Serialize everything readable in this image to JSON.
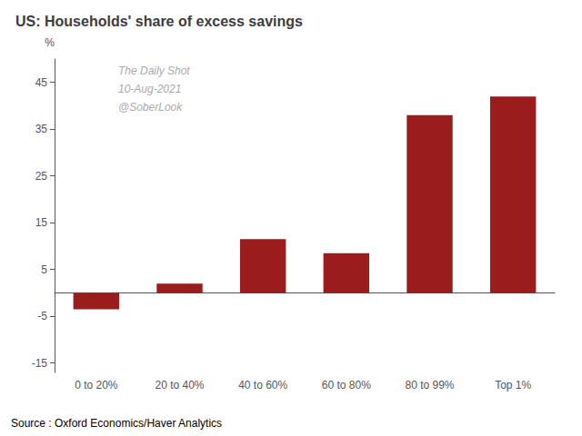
{
  "chart_data": {
    "type": "bar",
    "title": "US: Households' share of excess savings",
    "ylabel": "%",
    "categories": [
      "0 to 20%",
      "20 to 40%",
      "40 to 60%",
      "60 to 80%",
      "80 to 99%",
      "Top 1%"
    ],
    "values": [
      -3.5,
      2.0,
      11.5,
      8.5,
      38.0,
      42.0
    ],
    "color": "#9B1C1C",
    "ylim": [
      -17,
      50
    ],
    "yticks": [
      -15,
      -5,
      5,
      15,
      25,
      35,
      45
    ],
    "grid": false,
    "annotations": [
      "The Daily Shot",
      "10-Aug-2021",
      "@SoberLook"
    ],
    "source": "Source : Oxford Economics/Haver Analytics"
  }
}
